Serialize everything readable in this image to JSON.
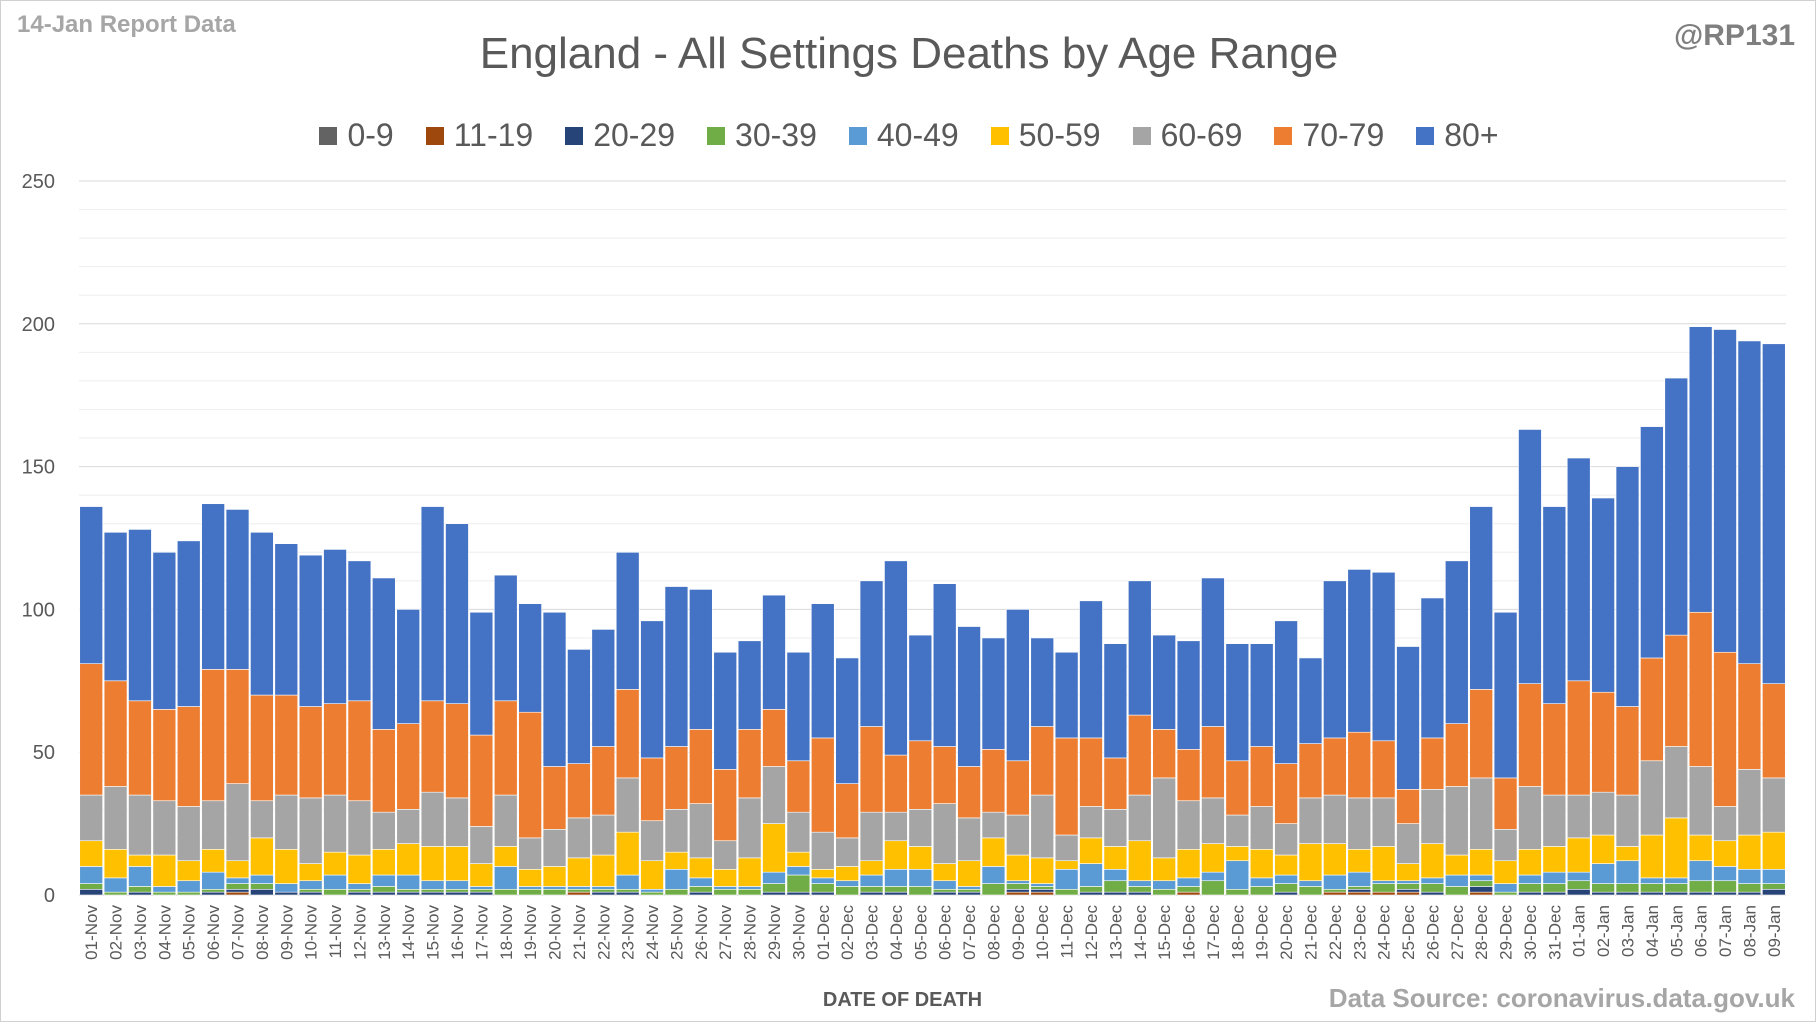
{
  "header": {
    "report_label": "14-Jan Report Data",
    "handle": "@RP131",
    "source": "Data Source: coronavirus.data.gov.uk"
  },
  "chart_data": {
    "type": "bar",
    "stacked": true,
    "title": "England - All Settings Deaths by Age Range",
    "xlabel": "DATE OF DEATH",
    "ylabel": "",
    "ylim": [
      0,
      250
    ],
    "yticks": [
      0,
      50,
      100,
      150,
      200,
      250
    ],
    "grid": true,
    "legend_position": "top",
    "categories": [
      "01-Nov",
      "02-Nov",
      "03-Nov",
      "04-Nov",
      "05-Nov",
      "06-Nov",
      "07-Nov",
      "08-Nov",
      "09-Nov",
      "10-Nov",
      "11-Nov",
      "12-Nov",
      "13-Nov",
      "14-Nov",
      "15-Nov",
      "16-Nov",
      "17-Nov",
      "18-Nov",
      "19-Nov",
      "20-Nov",
      "21-Nov",
      "22-Nov",
      "23-Nov",
      "24-Nov",
      "25-Nov",
      "26-Nov",
      "27-Nov",
      "28-Nov",
      "29-Nov",
      "30-Nov",
      "01-Dec",
      "02-Dec",
      "03-Dec",
      "04-Dec",
      "05-Dec",
      "06-Dec",
      "07-Dec",
      "08-Dec",
      "09-Dec",
      "10-Dec",
      "11-Dec",
      "12-Dec",
      "13-Dec",
      "14-Dec",
      "15-Dec",
      "16-Dec",
      "17-Dec",
      "18-Dec",
      "19-Dec",
      "20-Dec",
      "21-Dec",
      "22-Dec",
      "23-Dec",
      "24-Dec",
      "25-Dec",
      "26-Dec",
      "27-Dec",
      "28-Dec",
      "29-Dec",
      "30-Dec",
      "31-Dec",
      "01-Jan",
      "02-Jan",
      "03-Jan",
      "04-Jan",
      "05-Jan",
      "06-Jan",
      "07-Jan",
      "08-Jan",
      "09-Jan"
    ],
    "series": [
      {
        "name": "0-9",
        "color": "#636363",
        "values": [
          0,
          0,
          0,
          0,
          0,
          0,
          0,
          0,
          0,
          0,
          0,
          0,
          0,
          0,
          0,
          0,
          0,
          0,
          0,
          0,
          0,
          0,
          0,
          0,
          0,
          0,
          0,
          0,
          0,
          0,
          0,
          0,
          0,
          0,
          0,
          0,
          0,
          0,
          0,
          0,
          0,
          0,
          0,
          0,
          0,
          0,
          0,
          0,
          0,
          0,
          0,
          0,
          0,
          0,
          0,
          0,
          0,
          0,
          0,
          0,
          0,
          0,
          0,
          0,
          0,
          0,
          0,
          0,
          0,
          0
        ]
      },
      {
        "name": "11-19",
        "color": "#9e480e",
        "values": [
          0,
          0,
          0,
          0,
          0,
          0,
          1,
          0,
          0,
          0,
          0,
          0,
          0,
          0,
          0,
          0,
          0,
          0,
          0,
          0,
          1,
          0,
          0,
          0,
          0,
          0,
          0,
          0,
          0,
          0,
          0,
          0,
          0,
          0,
          0,
          0,
          0,
          0,
          1,
          1,
          0,
          0,
          0,
          0,
          0,
          1,
          0,
          0,
          0,
          0,
          0,
          1,
          1,
          1,
          1,
          0,
          0,
          1,
          0,
          0,
          0,
          0,
          0,
          0,
          0,
          0,
          0,
          0,
          0,
          0
        ]
      },
      {
        "name": "20-29",
        "color": "#264478",
        "values": [
          2,
          0,
          1,
          0,
          0,
          1,
          1,
          2,
          1,
          1,
          0,
          1,
          1,
          1,
          1,
          1,
          1,
          0,
          0,
          0,
          0,
          1,
          1,
          0,
          0,
          1,
          0,
          0,
          1,
          1,
          1,
          0,
          1,
          1,
          0,
          1,
          1,
          0,
          1,
          1,
          0,
          1,
          1,
          1,
          0,
          0,
          0,
          0,
          0,
          1,
          0,
          0,
          1,
          0,
          1,
          1,
          0,
          2,
          0,
          1,
          1,
          2,
          1,
          1,
          1,
          1,
          1,
          1,
          1,
          2
        ]
      },
      {
        "name": "30-39",
        "color": "#70ad47",
        "values": [
          2,
          1,
          2,
          1,
          1,
          1,
          2,
          2,
          0,
          1,
          2,
          1,
          2,
          1,
          1,
          1,
          1,
          2,
          2,
          2,
          1,
          1,
          1,
          1,
          2,
          2,
          2,
          2,
          3,
          6,
          3,
          3,
          2,
          2,
          3,
          1,
          1,
          4,
          2,
          1,
          2,
          2,
          4,
          2,
          2,
          2,
          5,
          2,
          3,
          3,
          3,
          1,
          1,
          3,
          2,
          3,
          3,
          2,
          1,
          3,
          3,
          3,
          3,
          3,
          3,
          3,
          4,
          4,
          3,
          2
        ]
      },
      {
        "name": "40-49",
        "color": "#5b9bd5",
        "values": [
          6,
          5,
          7,
          2,
          4,
          6,
          2,
          3,
          3,
          3,
          5,
          2,
          4,
          5,
          3,
          3,
          1,
          8,
          1,
          1,
          1,
          1,
          5,
          1,
          7,
          3,
          1,
          1,
          4,
          3,
          2,
          2,
          4,
          6,
          6,
          3,
          1,
          6,
          1,
          1,
          7,
          8,
          4,
          2,
          3,
          3,
          3,
          10,
          3,
          3,
          2,
          5,
          5,
          1,
          1,
          2,
          4,
          2,
          3,
          3,
          4,
          3,
          7,
          8,
          2,
          2,
          7,
          5,
          5,
          5
        ]
      },
      {
        "name": "50-59",
        "color": "#ffc000",
        "values": [
          9,
          10,
          4,
          11,
          7,
          8,
          6,
          13,
          12,
          6,
          8,
          10,
          9,
          11,
          12,
          12,
          8,
          7,
          6,
          7,
          10,
          11,
          15,
          10,
          6,
          7,
          6,
          10,
          17,
          5,
          3,
          5,
          5,
          10,
          8,
          6,
          9,
          10,
          9,
          9,
          3,
          9,
          8,
          14,
          8,
          10,
          10,
          5,
          10,
          7,
          13,
          11,
          8,
          12,
          6,
          12,
          7,
          9,
          8,
          9,
          9,
          12,
          10,
          5,
          15,
          21,
          9,
          9,
          12,
          13
        ]
      },
      {
        "name": "60-69",
        "color": "#a5a5a5",
        "values": [
          16,
          22,
          21,
          19,
          19,
          17,
          27,
          13,
          19,
          23,
          20,
          19,
          13,
          12,
          19,
          17,
          13,
          18,
          11,
          13,
          14,
          14,
          19,
          14,
          15,
          19,
          10,
          21,
          20,
          14,
          13,
          10,
          17,
          10,
          13,
          21,
          15,
          9,
          14,
          22,
          9,
          11,
          13,
          16,
          28,
          17,
          16,
          11,
          15,
          11,
          16,
          17,
          18,
          17,
          14,
          19,
          24,
          25,
          11,
          22,
          18,
          15,
          15,
          18,
          26,
          25,
          24,
          12,
          23,
          19
        ]
      },
      {
        "name": "70-79",
        "color": "#ed7d31",
        "values": [
          46,
          37,
          33,
          32,
          35,
          46,
          40,
          37,
          35,
          32,
          32,
          35,
          29,
          30,
          32,
          33,
          32,
          33,
          44,
          22,
          19,
          24,
          31,
          22,
          22,
          26,
          25,
          24,
          20,
          18,
          33,
          19,
          30,
          20,
          24,
          20,
          18,
          22,
          19,
          24,
          34,
          24,
          18,
          28,
          17,
          18,
          25,
          19,
          21,
          21,
          19,
          20,
          23,
          20,
          12,
          18,
          22,
          31,
          18,
          36,
          32,
          40,
          35,
          31,
          36,
          39,
          54,
          54,
          37,
          33
        ]
      },
      {
        "name": "80+",
        "color": "#4472c4",
        "values": [
          55,
          52,
          60,
          55,
          58,
          58,
          56,
          57,
          53,
          53,
          54,
          49,
          53,
          40,
          68,
          63,
          43,
          44,
          38,
          54,
          40,
          41,
          48,
          48,
          56,
          49,
          41,
          31,
          40,
          38,
          47,
          44,
          51,
          68,
          37,
          57,
          49,
          39,
          53,
          31,
          30,
          48,
          40,
          47,
          33,
          38,
          52,
          41,
          36,
          50,
          30,
          55,
          57,
          59,
          50,
          49,
          57,
          64,
          58,
          89,
          69,
          78,
          68,
          84,
          81,
          90,
          100,
          113,
          113,
          119
        ]
      }
    ]
  }
}
